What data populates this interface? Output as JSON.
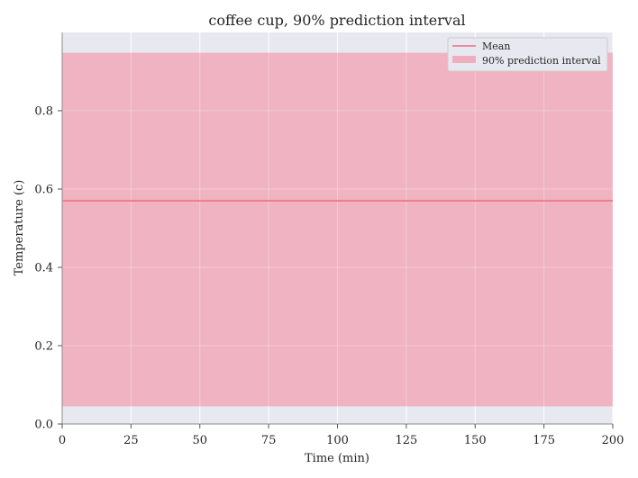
{
  "chart_data": {
    "type": "line",
    "title": "coffee cup, 90% prediction interval",
    "xlabel": "Time (min)",
    "ylabel": "Temperature (c)",
    "xlim": [
      0,
      200
    ],
    "ylim": [
      0,
      1.0
    ],
    "xticks": [
      0,
      25,
      50,
      75,
      100,
      125,
      150,
      175,
      200
    ],
    "yticks": [
      0.0,
      0.2,
      0.4,
      0.6,
      0.8
    ],
    "grid": true,
    "legend_position": "top-right",
    "series": [
      {
        "name": "Mean",
        "kind": "line",
        "color": "#f06e7c",
        "x": [
          0,
          200
        ],
        "y": [
          0.57,
          0.57
        ]
      },
      {
        "name": "90% prediction interval",
        "kind": "band",
        "color": "#efaebd",
        "x": [
          0,
          200
        ],
        "lower": [
          0.045,
          0.045
        ],
        "upper": [
          0.948,
          0.948
        ]
      }
    ],
    "colors": {
      "plot_background": "#e8e9f0",
      "grid": "#ffffff"
    }
  }
}
